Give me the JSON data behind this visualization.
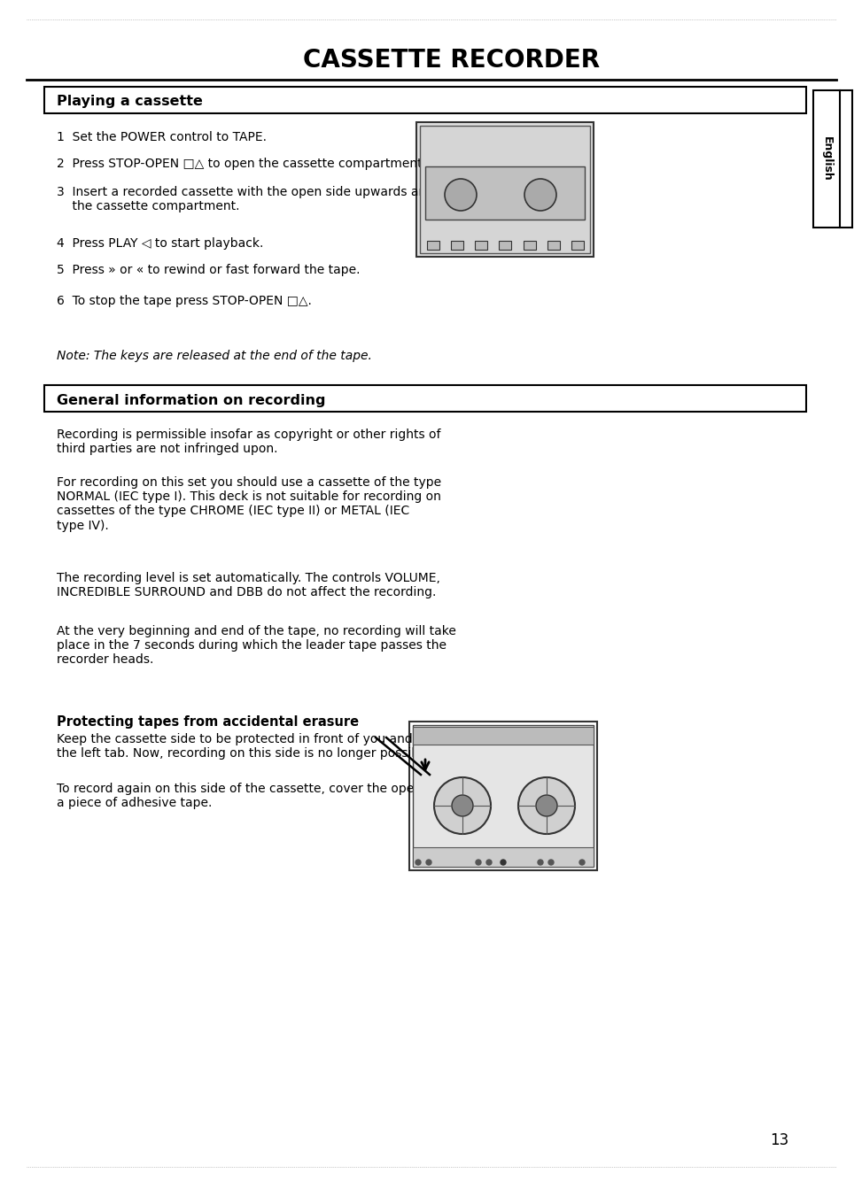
{
  "title": "CASSETTE RECORDER",
  "bg_color": "#ffffff",
  "text_color": "#000000",
  "page_number": "13",
  "section1_header": "Playing a cassette",
  "section1_items": [
    "1  Set the POWER control to TAPE.",
    "2  Press STOP-OPEN □△ to open the cassette compartment.",
    "3  Insert a recorded cassette with the open side upwards and close\n    the cassette compartment.",
    "4  Press PLAY ◁ to start playback.",
    "5  Press » or « to rewind or fast forward the tape.",
    "6  To stop the tape press STOP-OPEN □△."
  ],
  "section1_note": "Note: The keys are released at the end of the tape.",
  "section2_header": "General information on recording",
  "section2_para1": "Recording is permissible insofar as copyright or other rights of\nthird parties are not infringed upon.",
  "section2_para2": "For recording on this set you should use a cassette of the type\nNORMAL (IEC type I). This deck is not suitable for recording on\ncassettes of the type CHROME (IEC type II) or METAL (IEC\ntype IV).",
  "section2_para3": "The recording level is set automatically. The controls VOLUME,\nINCREDIBLE SURROUND and DBB do not affect the recording.",
  "section2_para4": "At the very beginning and end of the tape, no recording will take\nplace in the 7 seconds during which the leader tape passes the\nrecorder heads.",
  "section3_bold": "Protecting tapes from accidental erasure",
  "section3_para1": "Keep the cassette side to be protected in front of you and snap off\nthe left tab. Now, recording on this side is no longer possible.",
  "section3_para2": "To record again on this side of the cassette, cover the opening with\na piece of adhesive tape.",
  "english_label": "English"
}
